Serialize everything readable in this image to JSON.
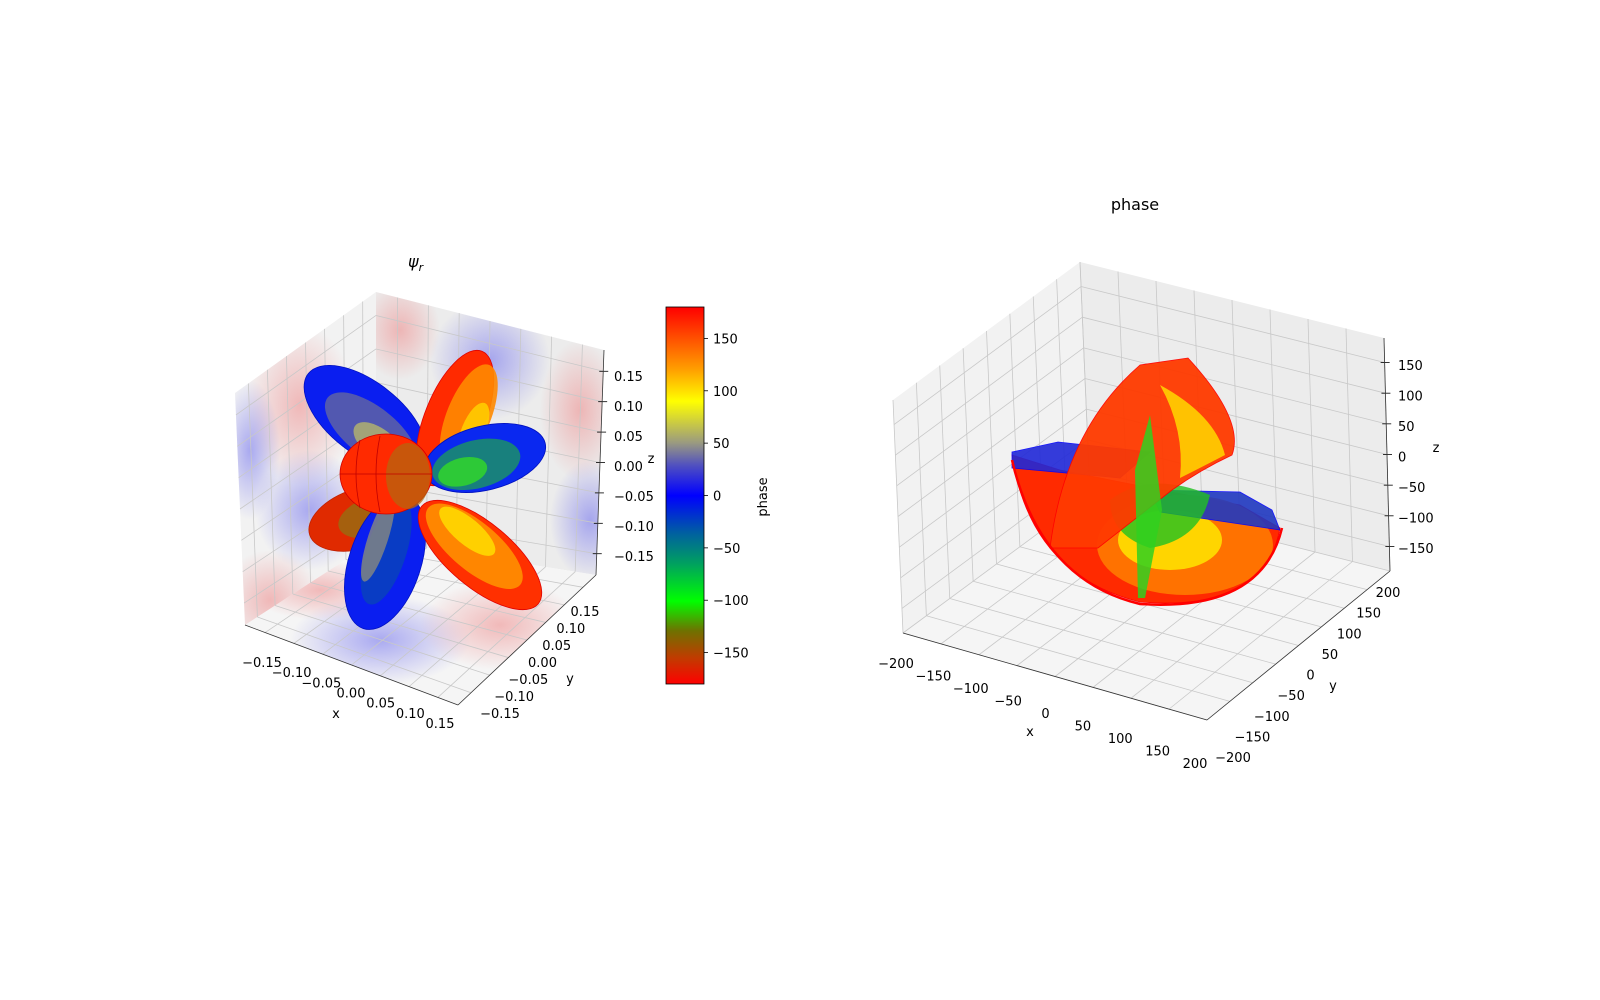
{
  "chart_data": [
    {
      "type": "surface3d",
      "title_main": "ψ",
      "title_sub": "r",
      "xlabel": "x",
      "ylabel": "y",
      "zlabel": "z",
      "xlim": [
        -0.185,
        0.185
      ],
      "ylim": [
        -0.185,
        0.185
      ],
      "zlim": [
        -0.185,
        0.185
      ],
      "xticks": [
        "−0.15",
        "−0.10",
        "−0.05",
        "0.00",
        "0.05",
        "0.10",
        "0.15"
      ],
      "yticks": [
        "−0.15",
        "−0.10",
        "−0.05",
        "0.00",
        "0.05",
        "0.10",
        "0.15"
      ],
      "zticks": [
        "−0.15",
        "−0.10",
        "−0.05",
        "0.00",
        "0.05",
        "0.10",
        "0.15"
      ],
      "tick_values": [
        -0.15,
        -0.1,
        -0.05,
        0.0,
        0.05,
        0.1,
        0.15
      ],
      "grid": true,
      "colorbar": {
        "label": "phase",
        "range": [
          -180,
          180
        ],
        "ticks": [
          "−150",
          "−100",
          "−50",
          "0",
          "50",
          "100",
          "150"
        ],
        "tick_values": [
          -150,
          -100,
          -50,
          0,
          50,
          100,
          150
        ]
      }
    },
    {
      "type": "surface3d",
      "title": "phase",
      "xlabel": "x",
      "ylabel": "y",
      "zlabel": "z",
      "xlim": [
        -200,
        200
      ],
      "ylim": [
        -200,
        200
      ],
      "zlim": [
        -190,
        190
      ],
      "xticks": [
        "−200",
        "−150",
        "−100",
        "−50",
        "0",
        "50",
        "100",
        "150",
        "200"
      ],
      "yticks": [
        "−200",
        "−150",
        "−100",
        "−50",
        "0",
        "50",
        "100",
        "150",
        "200"
      ],
      "xy_tick_values": [
        -200,
        -150,
        -100,
        -50,
        0,
        50,
        100,
        150,
        200
      ],
      "zticks": [
        "−150",
        "−100",
        "−50",
        "0",
        "50",
        "100",
        "150"
      ],
      "z_tick_values": [
        -150,
        -100,
        -50,
        0,
        50,
        100,
        150
      ],
      "grid": true
    }
  ],
  "colors": {
    "pane": "#f2f2f2",
    "grid": "#c8c8c8",
    "positive": "#e06060",
    "negative": "#6060e0"
  }
}
